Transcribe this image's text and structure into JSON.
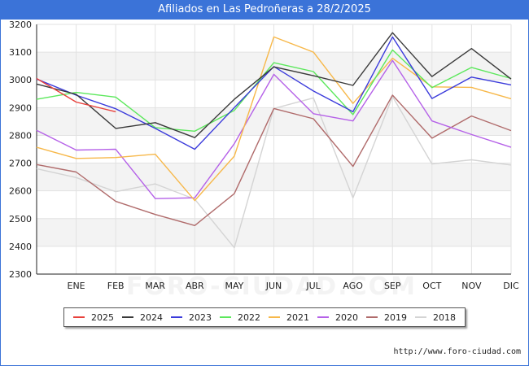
{
  "title": "Afiliados en Las Pedroñeras a 28/2/2025",
  "source": "http://www.foro-ciudad.com",
  "watermark": "FORO-CIUDAD.COM",
  "chart_data": {
    "type": "line",
    "title": "Afiliados en Las Pedroñeras a 28/2/2025",
    "categories": [
      "",
      "ENE",
      "FEB",
      "MAR",
      "ABR",
      "MAY",
      "JUN",
      "JUL",
      "AGO",
      "SEP",
      "OCT",
      "NOV",
      "DIC"
    ],
    "ylim": [
      2300,
      3200
    ],
    "yticks": [
      2300,
      2400,
      2500,
      2600,
      2700,
      2800,
      2900,
      3000,
      3100,
      3200
    ],
    "grid": true,
    "legend_position": "bottom",
    "series": [
      {
        "name": "2025",
        "color": "#e8413c",
        "values": [
          3005,
          2920,
          2885,
          null,
          null,
          null,
          null,
          null,
          null,
          null,
          null,
          null,
          null
        ]
      },
      {
        "name": "2024",
        "color": "#3a3a3a",
        "values": [
          2985,
          2948,
          2825,
          2846,
          2792,
          2930,
          3047,
          3015,
          2980,
          3170,
          3012,
          3113,
          3003
        ]
      },
      {
        "name": "2023",
        "color": "#3b3bdb",
        "values": [
          3003,
          2945,
          2896,
          2825,
          2750,
          2900,
          3048,
          2960,
          2885,
          3155,
          2933,
          3010,
          2982
        ]
      },
      {
        "name": "2022",
        "color": "#5ce85c",
        "values": [
          2930,
          2955,
          2938,
          2828,
          2815,
          2890,
          3062,
          3030,
          2875,
          3108,
          2972,
          3045,
          3005
        ]
      },
      {
        "name": "2021",
        "color": "#f7b84a",
        "values": [
          2757,
          2717,
          2720,
          2732,
          2565,
          2725,
          3155,
          3100,
          2915,
          3078,
          2975,
          2973,
          2932
        ]
      },
      {
        "name": "2020",
        "color": "#b561e8",
        "values": [
          2818,
          2747,
          2750,
          2572,
          2575,
          2770,
          3020,
          2878,
          2852,
          3070,
          2852,
          2803,
          2757
        ]
      },
      {
        "name": "2019",
        "color": "#b06b6b",
        "values": [
          2695,
          2668,
          2562,
          2515,
          2475,
          2590,
          2897,
          2860,
          2688,
          2945,
          2790,
          2870,
          2817
        ]
      },
      {
        "name": "2018",
        "color": "#d4d4d4",
        "values": [
          2680,
          2648,
          2597,
          2625,
          2570,
          2395,
          2897,
          2935,
          2575,
          2940,
          2697,
          2712,
          2693
        ]
      }
    ]
  }
}
